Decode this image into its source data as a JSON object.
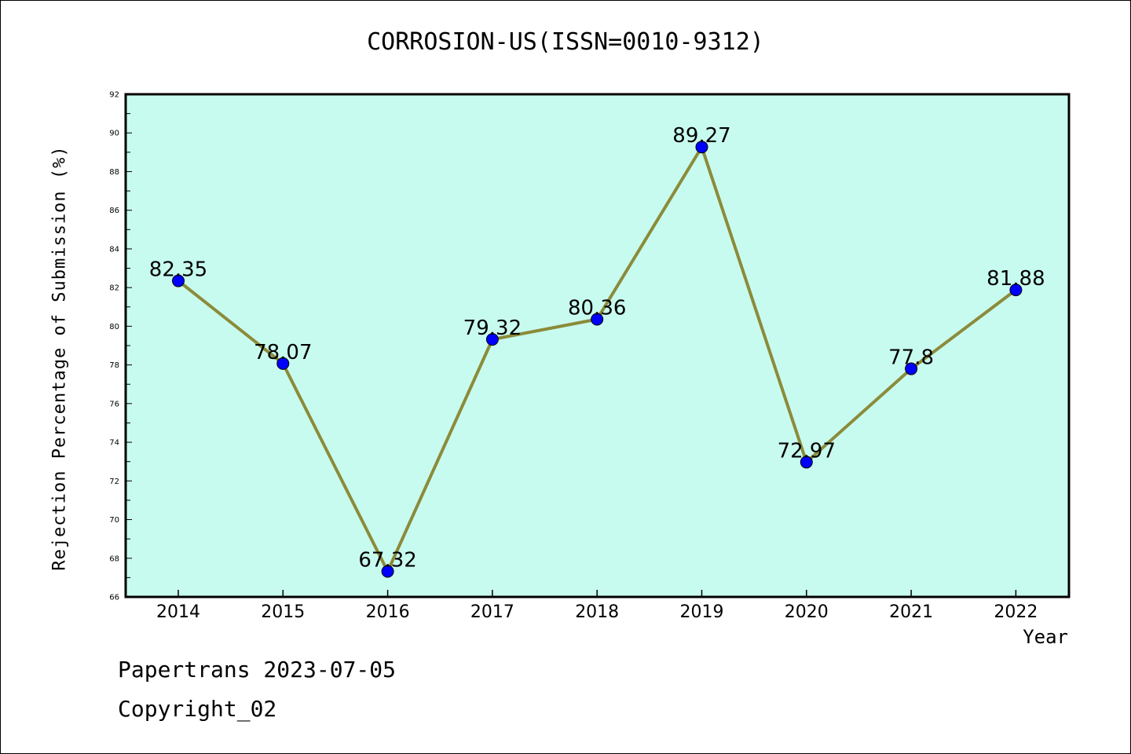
{
  "chart_data": {
    "type": "line",
    "title": "CORROSION-US(ISSN=0010-9312)",
    "xlabel": "Year",
    "ylabel": "Rejection Percentage of Submission (%)",
    "categories": [
      "2014",
      "2015",
      "2016",
      "2017",
      "2018",
      "2019",
      "2020",
      "2021",
      "2022"
    ],
    "series": [
      {
        "values": [
          82.35,
          78.07,
          67.32,
          79.32,
          80.36,
          89.27,
          72.97,
          77.8,
          81.88
        ],
        "labels": [
          "82.35",
          "78.07",
          "67.32",
          "79.32",
          "80.36",
          "89.27",
          "72.97",
          "77.8",
          "81.88"
        ],
        "line_color": "#8b8b3a",
        "marker_color": "#0000ff"
      }
    ],
    "ylim": [
      66,
      92
    ],
    "yticks": [
      "66",
      "68",
      "70",
      "72",
      "74",
      "76",
      "78",
      "80",
      "82",
      "84",
      "86",
      "88",
      "90",
      "92"
    ],
    "grid": false,
    "background_color": "#c8fbef"
  },
  "footer": {
    "line1": "Papertrans 2023-07-05",
    "line2": "Copyright_02"
  }
}
